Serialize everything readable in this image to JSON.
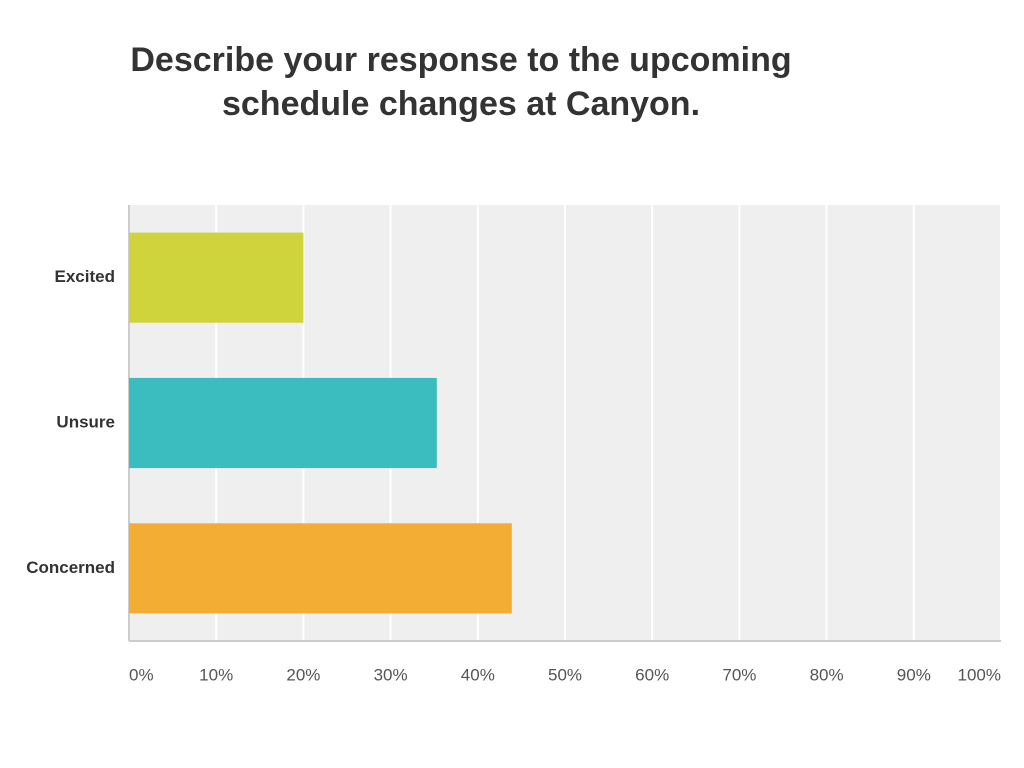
{
  "chart_data": {
    "type": "bar",
    "orientation": "horizontal",
    "title": "Describe your response to the upcoming schedule changes at Canyon.",
    "categories": [
      "Excited",
      "Unsure",
      "Concerned"
    ],
    "values": [
      20,
      35.3,
      43.9
    ],
    "colors": [
      "#cfd33c",
      "#3bbdbf",
      "#f3ad35"
    ],
    "xlim": [
      0,
      100
    ],
    "xticks": [
      {
        "value": 0,
        "label": "0%"
      },
      {
        "value": 10,
        "label": "10%"
      },
      {
        "value": 20,
        "label": "20%"
      },
      {
        "value": 30,
        "label": "30%"
      },
      {
        "value": 40,
        "label": "40%"
      },
      {
        "value": 50,
        "label": "50%"
      },
      {
        "value": 60,
        "label": "60%"
      },
      {
        "value": 70,
        "label": "70%"
      },
      {
        "value": 80,
        "label": "80%"
      },
      {
        "value": 90,
        "label": "90%"
      },
      {
        "value": 100,
        "label": "100%"
      }
    ],
    "grid": true
  }
}
